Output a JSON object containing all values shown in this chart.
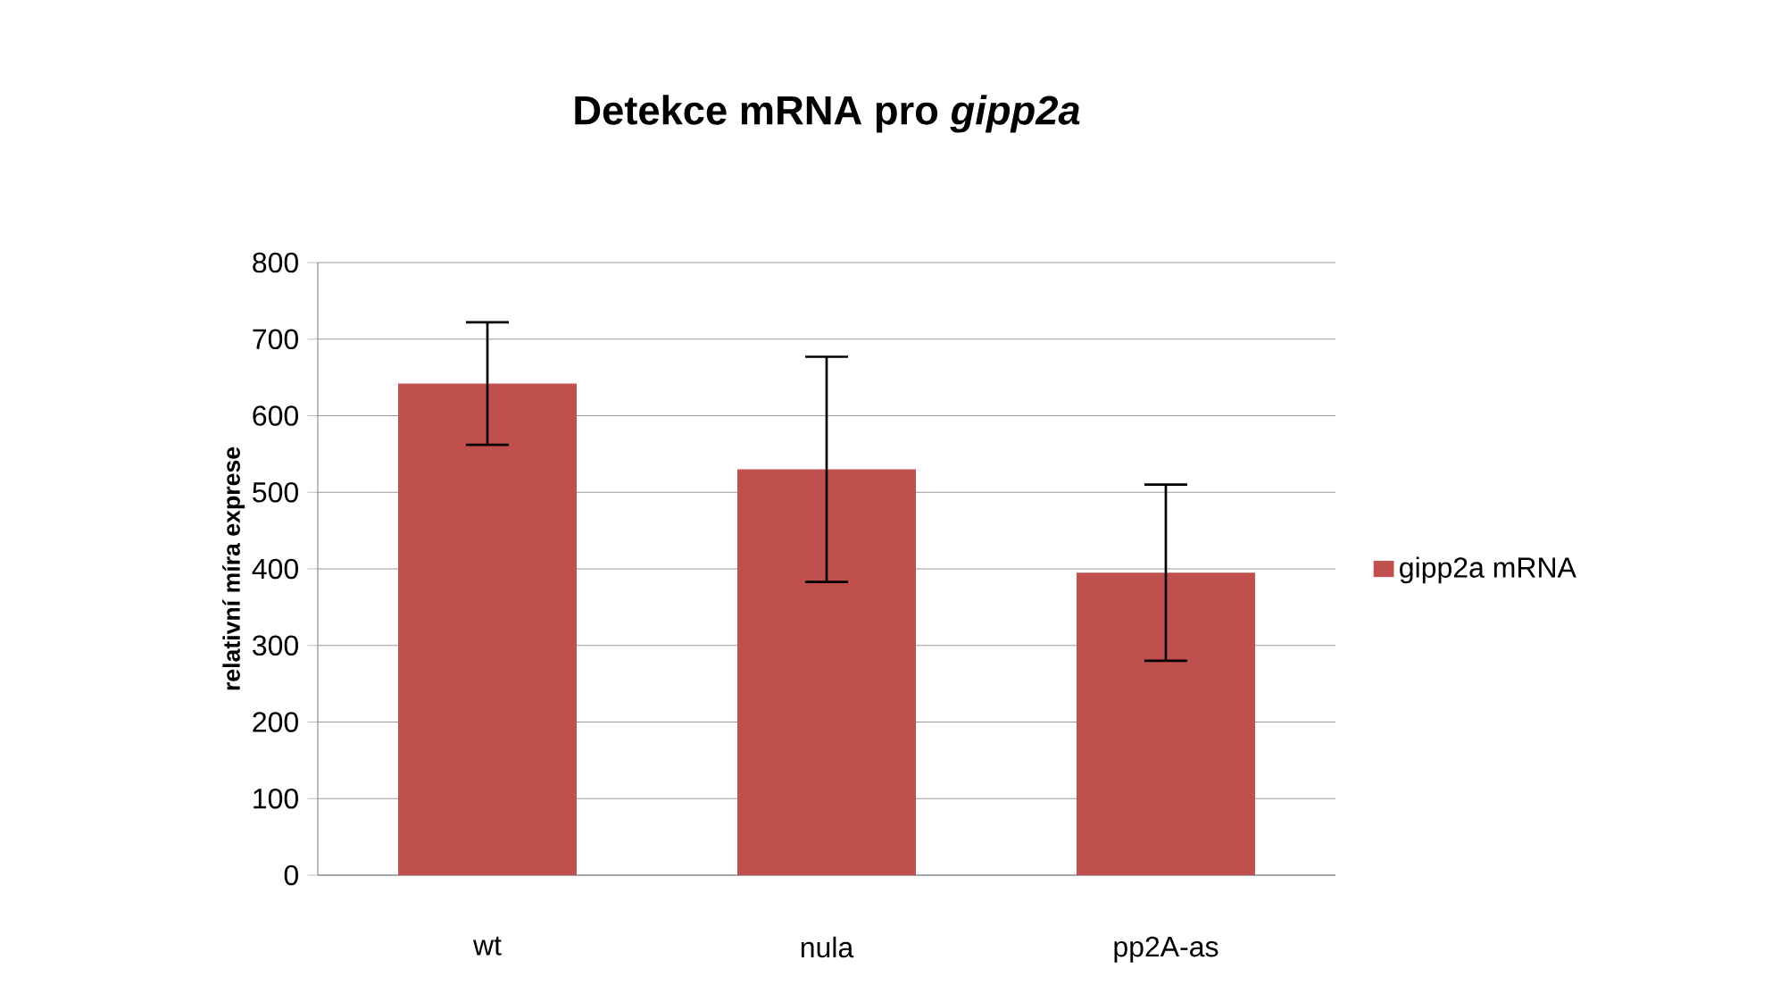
{
  "chart_data": {
    "type": "bar",
    "title": "Detekce mRNA pro *gipp2a*",
    "ylabel": "relativní míra exprese",
    "categories": [
      "wt",
      "nula",
      "pp2A-as"
    ],
    "series": [
      {
        "name": "gipp2a mRNA",
        "color": "#c0504d",
        "values": [
          642,
          530,
          395
        ],
        "errors": [
          80,
          147,
          115
        ]
      }
    ],
    "ylim": [
      0,
      800
    ],
    "yticks": [
      0,
      100,
      200,
      300,
      400,
      500,
      600,
      700,
      800
    ],
    "grid": "y",
    "legend": "right"
  }
}
